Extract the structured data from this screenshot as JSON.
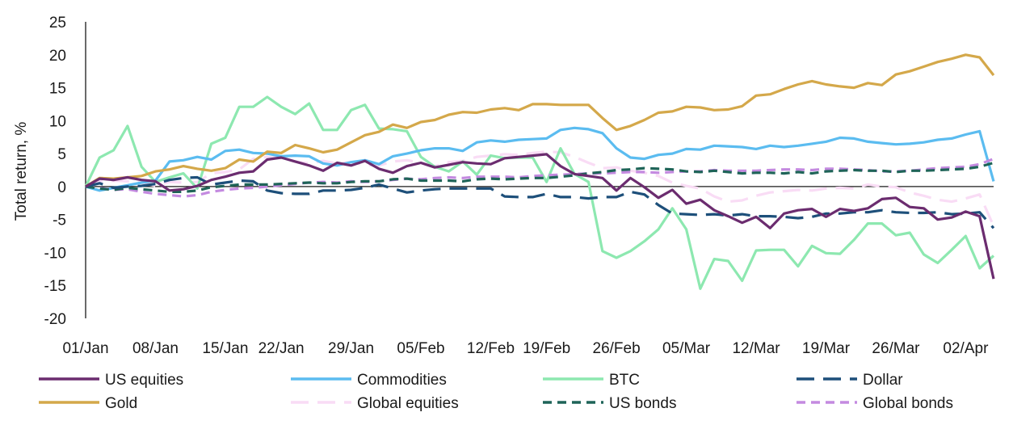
{
  "chart_data": {
    "type": "line",
    "ylabel": "Total return, %",
    "ylim": [
      -20,
      25
    ],
    "yticks": [
      25,
      20,
      15,
      10,
      5,
      0,
      -5,
      -10,
      -15,
      -20
    ],
    "x_dates": [
      "01/Jan",
      "02/Jan",
      "03/Jan",
      "06/Jan",
      "07/Jan",
      "08/Jan",
      "09/Jan",
      "10/Jan",
      "13/Jan",
      "14/Jan",
      "15/Jan",
      "16/Jan",
      "17/Jan",
      "21/Jan",
      "22/Jan",
      "23/Jan",
      "24/Jan",
      "27/Jan",
      "28/Jan",
      "29/Jan",
      "30/Jan",
      "31/Jan",
      "03/Feb",
      "04/Feb",
      "05/Feb",
      "06/Feb",
      "07/Feb",
      "10/Feb",
      "11/Feb",
      "12/Feb",
      "13/Feb",
      "14/Feb",
      "18/Feb",
      "19/Feb",
      "20/Feb",
      "21/Feb",
      "24/Feb",
      "25/Feb",
      "26/Feb",
      "27/Feb",
      "28/Feb",
      "03/Mar",
      "04/Mar",
      "05/Mar",
      "06/Mar",
      "07/Mar",
      "10/Mar",
      "11/Mar",
      "12/Mar",
      "13/Mar",
      "14/Mar",
      "17/Mar",
      "18/Mar",
      "19/Mar",
      "20/Mar",
      "21/Mar",
      "24/Mar",
      "25/Mar",
      "26/Mar",
      "27/Mar",
      "28/Mar",
      "31/Mar",
      "01/Apr",
      "02/Apr",
      "03/Apr",
      "04/Apr"
    ],
    "x_tick_labels": [
      "01/Jan",
      "08/Jan",
      "15/Jan",
      "22/Jan",
      "29/Jan",
      "05/Feb",
      "12/Feb",
      "19/Feb",
      "26/Feb",
      "05/Mar",
      "12/Mar",
      "19/Mar",
      "26/Mar",
      "02/Apr"
    ],
    "series": [
      {
        "name": "US equities",
        "color": "#6b2c6f",
        "dash": "solid",
        "values": [
          0,
          1.2,
          1.0,
          1.4,
          1.0,
          0.8,
          -0.6,
          -0.4,
          0.1,
          1.0,
          1.5,
          2.1,
          2.3,
          4.1,
          4.4,
          3.8,
          3.2,
          2.4,
          3.6,
          3.2,
          3.9,
          2.7,
          2.1,
          3.1,
          3.6,
          2.9,
          3.3,
          3.7,
          3.5,
          3.4,
          4.3,
          4.5,
          4.7,
          4.9,
          3.1,
          1.9,
          1.6,
          1.3,
          -0.6,
          1.3,
          -0.1,
          -1.7,
          -0.5,
          -2.6,
          -2.0,
          -3.6,
          -4.5,
          -5.5,
          -4.6,
          -6.3,
          -4.1,
          -3.6,
          -3.4,
          -4.6,
          -3.4,
          -3.7,
          -3.3,
          -1.9,
          -1.7,
          -3.1,
          -3.3,
          -5.0,
          -4.7,
          -3.8,
          -4.5,
          -14.0
        ]
      },
      {
        "name": "Commodities",
        "color": "#5bbcf0",
        "dash": "solid",
        "values": [
          0,
          -0.6,
          -0.2,
          0.2,
          0.6,
          0.9,
          3.8,
          4.0,
          4.5,
          4.1,
          5.4,
          5.6,
          5.1,
          5.0,
          4.6,
          4.7,
          4.6,
          3.5,
          3.2,
          3.7,
          4.0,
          3.4,
          4.6,
          5.0,
          5.5,
          5.8,
          5.8,
          5.4,
          6.7,
          7.0,
          6.8,
          7.1,
          7.2,
          7.3,
          8.6,
          8.9,
          8.7,
          8.1,
          5.8,
          4.4,
          4.2,
          4.8,
          5.0,
          5.7,
          5.6,
          6.2,
          6.1,
          6.0,
          5.7,
          6.2,
          6.0,
          6.2,
          6.5,
          6.8,
          7.4,
          7.3,
          6.8,
          6.6,
          6.4,
          6.5,
          6.7,
          7.1,
          7.3,
          7.9,
          8.4,
          0.8
        ]
      },
      {
        "name": "BTC",
        "color": "#8de8b0",
        "dash": "solid",
        "values": [
          0,
          4.4,
          5.5,
          9.2,
          3.0,
          0.7,
          1.4,
          2.0,
          -0.3,
          6.5,
          7.4,
          12.1,
          12.1,
          13.6,
          12.1,
          11.0,
          12.6,
          8.6,
          8.6,
          11.6,
          12.4,
          8.8,
          8.7,
          8.4,
          4.5,
          3.0,
          2.3,
          3.8,
          1.8,
          4.7,
          4.3,
          4.4,
          4.4,
          0.7,
          5.8,
          1.9,
          0.7,
          -9.8,
          -10.8,
          -9.8,
          -8.3,
          -6.5,
          -3.3,
          -6.5,
          -15.5,
          -11.0,
          -11.3,
          -14.3,
          -9.7,
          -9.6,
          -9.6,
          -12.1,
          -9.0,
          -10.1,
          -10.2,
          -8.1,
          -5.6,
          -5.6,
          -7.4,
          -7.0,
          -10.3,
          -11.6,
          -9.6,
          -7.5,
          -12.4,
          -10.5
        ]
      },
      {
        "name": "Dollar",
        "color": "#1d4f7a",
        "dash": "long",
        "values": [
          0,
          0.5,
          -0.2,
          0,
          0.1,
          0.4,
          1.0,
          1.3,
          1.4,
          0.3,
          0.6,
          0.9,
          0.8,
          -0.6,
          -1.0,
          -1.1,
          -1.1,
          -0.6,
          -0.6,
          -0.5,
          -0.2,
          0.3,
          -0.3,
          -0.9,
          -0.6,
          -0.4,
          -0.3,
          -0.3,
          -0.3,
          -0.3,
          -1.5,
          -1.6,
          -1.6,
          -1.1,
          -1.6,
          -1.6,
          -1.8,
          -1.6,
          -1.6,
          -0.8,
          -1.2,
          -2.8,
          -4.1,
          -4.2,
          -4.3,
          -4.2,
          -4.4,
          -4.2,
          -4.5,
          -4.5,
          -4.6,
          -4.8,
          -4.6,
          -4.1,
          -4.1,
          -3.9,
          -3.9,
          -3.6,
          -3.9,
          -4.0,
          -4.0,
          -3.9,
          -4.2,
          -4.1,
          -3.9,
          -6.3
        ]
      },
      {
        "name": "Gold",
        "color": "#d4a84a",
        "dash": "solid",
        "values": [
          0,
          1.3,
          1.2,
          1.4,
          1.6,
          2.3,
          2.6,
          3.1,
          2.7,
          2.4,
          2.8,
          4.1,
          3.8,
          5.3,
          5.1,
          6.3,
          5.8,
          5.2,
          5.6,
          6.7,
          7.8,
          8.3,
          9.4,
          8.9,
          9.8,
          10.1,
          10.9,
          11.3,
          11.2,
          11.7,
          11.9,
          11.6,
          12.5,
          12.5,
          12.4,
          12.4,
          12.4,
          10.4,
          8.6,
          9.2,
          10.1,
          11.2,
          11.4,
          12.1,
          12.0,
          11.6,
          11.7,
          12.2,
          13.8,
          14.0,
          14.8,
          15.5,
          16.0,
          15.5,
          15.2,
          15.0,
          15.7,
          15.4,
          17.0,
          17.5,
          18.2,
          18.9,
          19.4,
          20.0,
          19.6,
          16.9
        ]
      },
      {
        "name": "Global equities",
        "color": "#f9dcf5",
        "dash": "long",
        "values": [
          0,
          0.8,
          0.9,
          0.8,
          0.6,
          0.1,
          0.7,
          0.6,
          0.7,
          2.0,
          2.2,
          2.6,
          4.2,
          4.5,
          4.3,
          3.8,
          3.5,
          3.9,
          3.5,
          3.7,
          3.3,
          3.2,
          3.8,
          4.0,
          3.6,
          3.1,
          3.7,
          3.9,
          4.5,
          4.7,
          4.9,
          4.8,
          5.1,
          5.3,
          5.2,
          4.5,
          3.6,
          2.8,
          2.9,
          2.4,
          2.1,
          1.6,
          0.6,
          0.1,
          -0.3,
          -1.5,
          -2.3,
          -2.1,
          -1.4,
          -0.9,
          -0.7,
          -0.5,
          -0.6,
          -0.3,
          -0.2,
          -0.3,
          0.3,
          0.0,
          -0.1,
          -0.9,
          -1.4,
          -2.0,
          -2.3,
          -1.8,
          -1.2,
          -6.0
        ]
      },
      {
        "name": "US bonds",
        "color": "#1f6458",
        "dash": "short",
        "values": [
          0,
          -0.3,
          -0.5,
          -0.2,
          -0.4,
          -0.6,
          -0.8,
          -0.8,
          -0.6,
          -0.1,
          0.1,
          0.3,
          0.3,
          0.3,
          0.4,
          0.5,
          0.6,
          0.5,
          0.5,
          0.7,
          0.8,
          0.8,
          1.1,
          1.2,
          0.9,
          0.9,
          0.9,
          0.8,
          1.1,
          1.2,
          1.1,
          1.2,
          1.3,
          1.3,
          1.5,
          1.7,
          2.0,
          2.2,
          2.5,
          2.6,
          2.8,
          2.7,
          2.6,
          2.3,
          2.2,
          2.4,
          2.2,
          2.0,
          2.1,
          2.1,
          2.0,
          2.2,
          2.0,
          2.3,
          2.4,
          2.5,
          2.4,
          2.4,
          2.2,
          2.4,
          2.4,
          2.5,
          2.6,
          2.7,
          3.0,
          3.6
        ]
      },
      {
        "name": "Global bonds",
        "color": "#c48ae0",
        "dash": "short",
        "values": [
          0,
          -0.2,
          -0.5,
          -0.4,
          -0.8,
          -1.1,
          -1.3,
          -1.5,
          -1.3,
          -0.8,
          -0.5,
          -0.3,
          -0.2,
          0.0,
          0.2,
          0.4,
          0.6,
          0.7,
          0.6,
          0.8,
          0.7,
          0.8,
          1.0,
          1.2,
          1.1,
          1.3,
          1.4,
          1.3,
          1.5,
          1.5,
          1.5,
          1.4,
          1.6,
          1.7,
          1.8,
          1.9,
          2.0,
          2.0,
          2.1,
          2.2,
          2.2,
          2.1,
          2.2,
          2.3,
          2.3,
          2.5,
          2.4,
          2.4,
          2.4,
          2.5,
          2.6,
          2.6,
          2.5,
          2.7,
          2.7,
          2.6,
          2.5,
          2.3,
          2.3,
          2.4,
          2.6,
          2.8,
          2.9,
          3.0,
          3.4,
          4.2
        ]
      }
    ]
  }
}
